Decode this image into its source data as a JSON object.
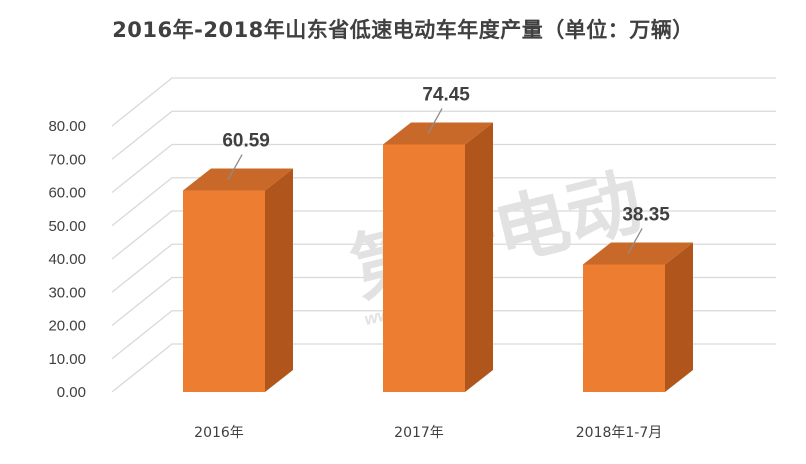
{
  "chart_data": {
    "type": "bar",
    "title": "2016年-2018年山东省低速电动车年度产量（单位：万辆）",
    "categories": [
      "2016年",
      "2017年",
      "2018年1-7月"
    ],
    "values": [
      60.59,
      74.45,
      38.35
    ],
    "data_labels": [
      "60.59",
      "74.45",
      "38.35"
    ],
    "y_ticks": [
      "0.00",
      "10.00",
      "20.00",
      "30.00",
      "40.00",
      "50.00",
      "60.00",
      "70.00",
      "80.00"
    ],
    "ylim": [
      0,
      80
    ],
    "xlabel": "",
    "ylabel": "",
    "grid": true,
    "legend": "none",
    "style": "3d-column",
    "colors": {
      "bar_front": "#ED7D31",
      "bar_side": "#B0561C",
      "bar_top": "#C8692A",
      "gridline": "#D9D9D9",
      "text": "#404040",
      "watermark": "#E0E0E0"
    }
  },
  "watermark": {
    "brand": "第一电动",
    "url": "www.D1EV.com"
  }
}
